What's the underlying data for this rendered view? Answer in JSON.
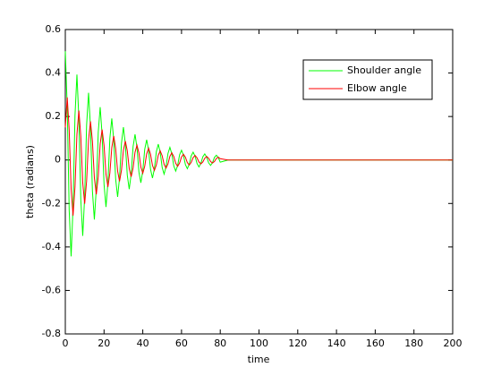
{
  "chart_data": {
    "type": "line",
    "xlabel": "time",
    "ylabel": "theta (radians)",
    "x": [
      0,
      1,
      2,
      3,
      4,
      5,
      6,
      7,
      8,
      9,
      10,
      11,
      12,
      13,
      14,
      15,
      16,
      17,
      18,
      19,
      20,
      21,
      22,
      23,
      24,
      25,
      26,
      27,
      28,
      29,
      30,
      31,
      32,
      33,
      34,
      35,
      36,
      37,
      38,
      39,
      40,
      41,
      42,
      43,
      44,
      45,
      46,
      47,
      48,
      49,
      50,
      51,
      52,
      53,
      54,
      55,
      56,
      57,
      58,
      59,
      60,
      61,
      62,
      63,
      64,
      65,
      66,
      67,
      68,
      69,
      70,
      71,
      72,
      73,
      74,
      75,
      76,
      77,
      78,
      79,
      80,
      84,
      200
    ],
    "series": [
      {
        "name": "Shoulder angle",
        "color": "#00ff00",
        "values": [
          0.5,
          0.24,
          -0.231,
          -0.443,
          -0.213,
          0.205,
          0.393,
          0.189,
          -0.182,
          -0.349,
          -0.168,
          0.161,
          0.309,
          0.149,
          -0.143,
          -0.274,
          -0.132,
          0.127,
          0.243,
          0.117,
          -0.112,
          -0.216,
          -0.104,
          0.1,
          0.191,
          0.092,
          -0.088,
          -0.17,
          -0.082,
          0.078,
          0.151,
          0.072,
          -0.07,
          -0.134,
          -0.064,
          0.062,
          0.118,
          0.057,
          -0.055,
          -0.105,
          -0.05,
          0.049,
          0.093,
          0.045,
          -0.043,
          -0.083,
          -0.04,
          0.038,
          0.073,
          0.035,
          -0.034,
          -0.065,
          -0.031,
          0.03,
          0.058,
          0.028,
          -0.027,
          -0.051,
          -0.025,
          0.024,
          0.045,
          0.022,
          -0.021,
          -0.04,
          -0.019,
          0.019,
          0.036,
          0.017,
          -0.016,
          -0.032,
          -0.015,
          0.015,
          0.028,
          0.013,
          -0.013,
          -0.025,
          -0.012,
          0.012,
          0.022,
          0.011,
          -0.01,
          0,
          0
        ]
      },
      {
        "name": "Elbow angle",
        "color": "#ff0000",
        "values": [
          0.15,
          0.288,
          0.138,
          -0.133,
          -0.256,
          -0.123,
          0.118,
          0.227,
          0.109,
          -0.105,
          -0.201,
          -0.097,
          0.093,
          0.178,
          0.086,
          -0.082,
          -0.158,
          -0.076,
          0.073,
          0.14,
          0.067,
          -0.065,
          -0.124,
          -0.06,
          0.057,
          0.11,
          0.053,
          -0.051,
          -0.098,
          -0.047,
          0.045,
          0.087,
          0.042,
          -0.04,
          -0.077,
          -0.037,
          0.036,
          0.068,
          0.033,
          -0.032,
          -0.061,
          -0.029,
          0.028,
          0.054,
          0.026,
          -0.025,
          -0.048,
          -0.023,
          0.022,
          0.042,
          0.02,
          -0.02,
          -0.037,
          -0.018,
          0.017,
          0.033,
          0.016,
          -0.015,
          -0.029,
          -0.014,
          0.014,
          0.026,
          0.013,
          -0.012,
          -0.023,
          -0.011,
          0.011,
          0.021,
          0.01,
          -0.009,
          -0.018,
          -0.009,
          0.008,
          0.016,
          0.008,
          -0.007,
          -0.014,
          -0.007,
          0.007,
          0.013,
          0.006,
          0,
          0
        ]
      }
    ],
    "xlim": [
      0,
      200
    ],
    "xticks": [
      0,
      20,
      40,
      60,
      80,
      100,
      120,
      140,
      160,
      180,
      200
    ],
    "ylim": [
      -0.8,
      0.6
    ],
    "yticks": [
      -0.8,
      -0.6,
      -0.4,
      -0.2,
      0,
      0.2,
      0.4,
      0.6
    ],
    "legend": "upper right"
  }
}
